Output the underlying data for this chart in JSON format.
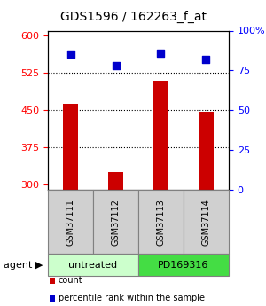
{
  "title": "GDS1596 / 162263_f_at",
  "samples": [
    "GSM37111",
    "GSM37112",
    "GSM37113",
    "GSM37114"
  ],
  "counts": [
    462,
    325,
    510,
    447
  ],
  "percentiles": [
    85,
    78,
    86,
    82
  ],
  "ylim_left": [
    290,
    610
  ],
  "ylim_right": [
    0,
    100
  ],
  "yticks_left": [
    300,
    375,
    450,
    525,
    600
  ],
  "yticks_right": [
    0,
    25,
    50,
    75,
    100
  ],
  "bar_color": "#cc0000",
  "dot_color": "#0000cc",
  "bar_width": 0.35,
  "gridlines": [
    375,
    450,
    525
  ],
  "agent_groups": [
    {
      "label": "untreated",
      "samples": [
        0,
        1
      ],
      "color": "#ccffcc"
    },
    {
      "label": "PD169316",
      "samples": [
        2,
        3
      ],
      "color": "#44dd44"
    }
  ],
  "legend_items": [
    {
      "label": "count",
      "color": "#cc0000"
    },
    {
      "label": "percentile rank within the sample",
      "color": "#0000cc"
    }
  ]
}
